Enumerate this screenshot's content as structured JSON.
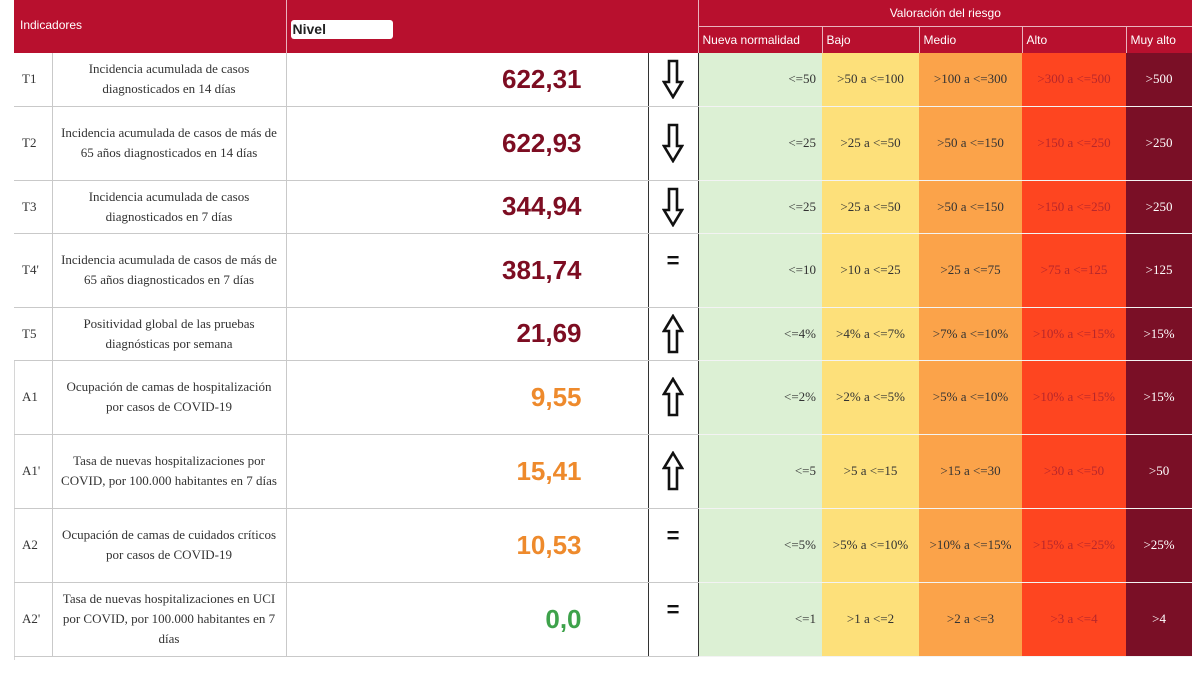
{
  "header": {
    "indicadores": "Indicadores",
    "nivel": "Nivel",
    "valoracion": "Valoración del riesgo",
    "bands": [
      "Nueva normalidad",
      "Bajo",
      "Medio",
      "Alto",
      "Muy alto"
    ]
  },
  "rows": [
    {
      "code": "T1",
      "label": "Incidencia acumulada de casos diagnosticados en 14 días",
      "value": "622,31",
      "value_color": "dark",
      "trend": "down",
      "nn": "<=50",
      "bajo": ">50 a <=100",
      "medio": ">100 a <=300",
      "alto": ">300 a <=500",
      "muy": ">500"
    },
    {
      "code": "T2",
      "label": "Incidencia acumulada de casos de más de 65 años diagnosticados en 14 días",
      "value": "622,93",
      "value_color": "dark",
      "trend": "down",
      "nn": "<=25",
      "bajo": ">25 a <=50",
      "medio": ">50 a <=150",
      "alto": ">150 a <=250",
      "muy": ">250"
    },
    {
      "code": "T3",
      "label": "Incidencia acumulada de casos diagnosticados en 7 días",
      "value": "344,94",
      "value_color": "dark",
      "trend": "down",
      "nn": "<=25",
      "bajo": ">25 a <=50",
      "medio": ">50 a <=150",
      "alto": ">150 a <=250",
      "muy": ">250"
    },
    {
      "code": "T4'",
      "label": "Incidencia acumulada de casos de más de 65 años diagnosticados en 7 días",
      "value": "381,74",
      "value_color": "dark",
      "trend": "equal",
      "trend_text": "=",
      "nn": "<=10",
      "bajo": ">10 a <=25",
      "medio": ">25 a <=75",
      "alto": ">75 a <=125",
      "muy": ">125"
    },
    {
      "code": "T5",
      "label": "Positividad global de las pruebas diagnósticas por semana",
      "value": "21,69",
      "value_color": "dark",
      "trend": "up",
      "nn": "<=4%",
      "bajo": ">4% a <=7%",
      "medio": ">7% a <=10%",
      "alto": ">10% a <=15%",
      "muy": ">15%"
    },
    {
      "code": "A1",
      "label": "Ocupación de camas de hospitalización por casos de COVID-19",
      "value": "9,55",
      "value_color": "orange",
      "trend": "up",
      "nn": "<=2%",
      "bajo": ">2% a <=5%",
      "medio": ">5% a <=10%",
      "alto": ">10% a <=15%",
      "muy": ">15%"
    },
    {
      "code": "A1'",
      "label": "Tasa de nuevas hospitalizaciones por COVID, por 100.000 habitantes en 7 días",
      "value": "15,41",
      "value_color": "orange",
      "trend": "up",
      "nn": "<=5",
      "bajo": ">5 a <=15",
      "medio": ">15 a <=30",
      "alto": ">30 a <=50",
      "muy": ">50"
    },
    {
      "code": "A2",
      "label": "Ocupación de camas de cuidados críticos por casos de COVID-19",
      "value": "10,53",
      "value_color": "orange",
      "trend": "equal",
      "trend_text": "=",
      "nn": "<=5%",
      "bajo": ">5% a <=10%",
      "medio": ">10% a <=15%",
      "alto": ">15% a <=25%",
      "muy": ">25%"
    },
    {
      "code": "A2'",
      "label": "Tasa de nuevas hospitalizaciones en UCI por COVID, por 100.000 habitantes en 7 días",
      "value": "0,0",
      "value_color": "green",
      "trend": "equal",
      "trend_text": "=",
      "nn": "<=1",
      "bajo": ">1 a <=2",
      "medio": ">2 a <=3",
      "alto": ">3 a <=4",
      "muy": ">4"
    }
  ],
  "colors": {
    "header_red": "#b8102e",
    "nueva_normalidad": "#dcf0d4",
    "bajo": "#fde07a",
    "medio": "#fba34a",
    "alto": "#fe4520",
    "muy_alto": "#7a0f26",
    "value_dark": "#7d0d22",
    "value_orange": "#ee8a2c",
    "value_green": "#3ea24b"
  }
}
